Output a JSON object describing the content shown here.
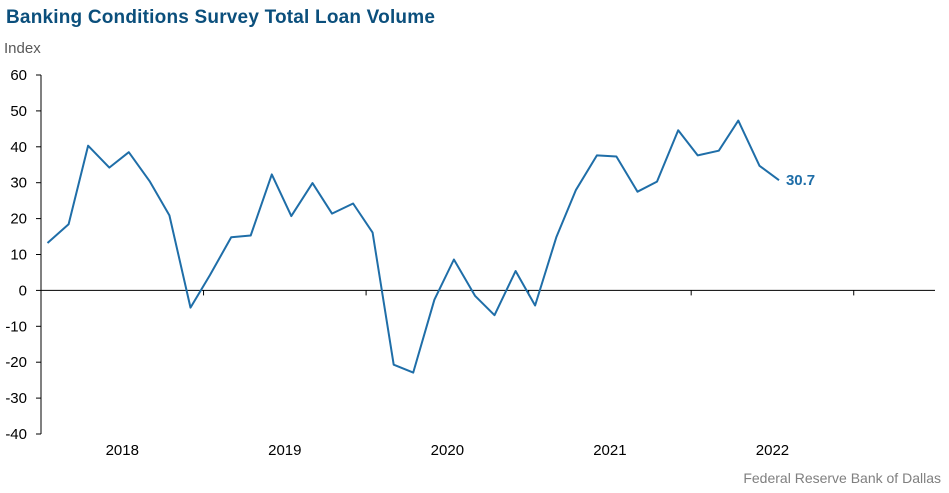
{
  "title": "Banking Conditions Survey Total Loan Volume",
  "source": "Federal Reserve Bank of Dallas",
  "colors": {
    "line": "#1f6ea8",
    "title": "#0b4f7c",
    "axis": "#000000",
    "label": "#1f6ea8"
  },
  "chart_data": {
    "type": "line",
    "title": "Banking Conditions Survey Total Loan Volume",
    "xlabel": "",
    "ylabel": "Index",
    "ylim": [
      -40,
      60
    ],
    "yticks": [
      60,
      50,
      40,
      30,
      20,
      10,
      0,
      -10,
      -20,
      -30,
      -40
    ],
    "ytick_labels": [
      "60",
      "50",
      "40",
      "30",
      "20",
      "10",
      "0",
      "-10",
      "-20",
      "-30",
      "-40"
    ],
    "xlim": [
      2017.5,
      2023.0
    ],
    "year_labels": [
      "2018",
      "2019",
      "2020",
      "2021",
      "2022"
    ],
    "year_positions": [
      2018.0,
      2019.0,
      2020.0,
      2021.0,
      2022.0
    ],
    "year_boundaries": [
      2017.5,
      2018.5,
      2019.5,
      2020.5,
      2021.5,
      2022.5
    ],
    "grid": false,
    "legend": "none",
    "series": [
      {
        "x": [
          2017.54,
          2017.67,
          2017.79,
          2017.92,
          2018.04,
          2018.17,
          2018.29,
          2018.42,
          2018.54,
          2018.67,
          2018.79,
          2018.92,
          2019.04,
          2019.17,
          2019.29,
          2019.42,
          2019.54,
          2019.67,
          2019.79,
          2019.92,
          2020.04,
          2020.17,
          2020.29,
          2020.42,
          2020.54,
          2020.67,
          2020.79,
          2020.92,
          2021.04,
          2021.17,
          2021.29,
          2021.42,
          2021.54,
          2021.67,
          2021.79,
          2021.92,
          2022.04
        ],
        "y": [
          13.2,
          18.4,
          40.3,
          34.2,
          38.5,
          30.3,
          20.9,
          -4.8,
          4.3,
          14.8,
          15.3,
          32.3,
          20.7,
          29.9,
          21.4,
          24.2,
          16.1,
          -20.7,
          -22.9,
          -2.6,
          8.6,
          -1.5,
          -6.9,
          5.4,
          -4.2,
          14.8,
          27.9,
          37.6,
          37.3,
          27.5,
          30.3,
          44.6,
          37.6,
          38.9,
          47.3,
          34.7,
          30.7
        ]
      }
    ],
    "annotations": [
      {
        "text": "30.7",
        "x": 2022.04,
        "y": 30.7
      }
    ]
  }
}
